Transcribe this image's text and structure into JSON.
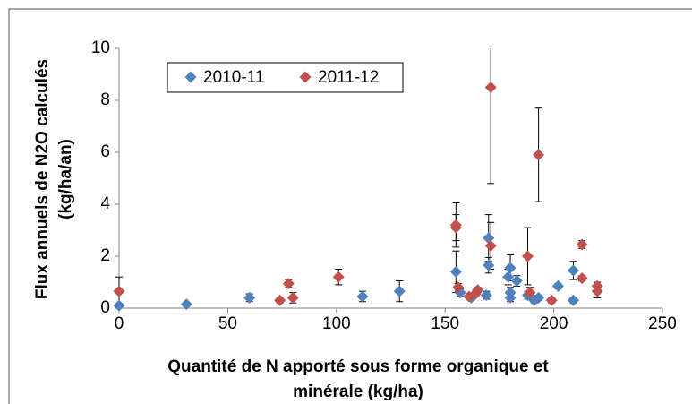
{
  "chart_data": {
    "type": "scatter",
    "x_label": [
      "Quantité de N apporté sous forme organique et",
      "minérale (kg/ha)"
    ],
    "y_label": [
      "Flux annuels de N2O calculés",
      "(kg/ha/an)"
    ],
    "xlim": [
      0,
      250
    ],
    "xticks": [
      0,
      50,
      100,
      150,
      200,
      250
    ],
    "ylim": [
      0,
      10
    ],
    "yticks": [
      0,
      2,
      4,
      6,
      8,
      10
    ],
    "grid": false,
    "legend": "top-left",
    "series": [
      {
        "name": "2010-11",
        "color": "#4f81bd",
        "x": [
          0,
          31,
          60,
          112,
          129,
          155,
          157,
          162,
          169,
          170,
          170,
          179,
          180,
          180,
          180,
          183,
          188,
          191,
          193,
          202,
          209,
          209
        ],
        "values": [
          0.1,
          0.15,
          0.4,
          0.45,
          0.65,
          1.4,
          0.6,
          0.4,
          0.5,
          2.7,
          1.65,
          1.2,
          1.55,
          0.6,
          0.4,
          1.05,
          0.5,
          0.3,
          0.4,
          0.85,
          1.45,
          0.3
        ],
        "errors": [
          0.05,
          0.05,
          0.15,
          0.2,
          0.4,
          0.8,
          0.15,
          0.1,
          0.15,
          0.9,
          0.3,
          0.3,
          0.5,
          0.2,
          0.15,
          0.2,
          0.15,
          0.1,
          0.1,
          0.1,
          0.35,
          0.1
        ]
      },
      {
        "name": "2011-12",
        "color": "#c0504d",
        "x": [
          0,
          74,
          78,
          80,
          101,
          155,
          155,
          156,
          161,
          164,
          165,
          171,
          171,
          188,
          189,
          193,
          199,
          213,
          213,
          220,
          220
        ],
        "values": [
          0.65,
          0.3,
          0.95,
          0.4,
          1.2,
          3.2,
          3.1,
          0.8,
          0.45,
          0.55,
          0.7,
          8.5,
          2.4,
          2.0,
          0.6,
          5.9,
          0.3,
          2.45,
          1.15,
          0.85,
          0.65
        ],
        "errors": [
          0.55,
          0.1,
          0.15,
          0.2,
          0.3,
          0.85,
          0.5,
          0.15,
          0.1,
          0.1,
          0.1,
          3.7,
          0.9,
          1.1,
          0.2,
          1.8,
          0.1,
          0.15,
          0.1,
          0.15,
          0.25
        ]
      }
    ]
  }
}
